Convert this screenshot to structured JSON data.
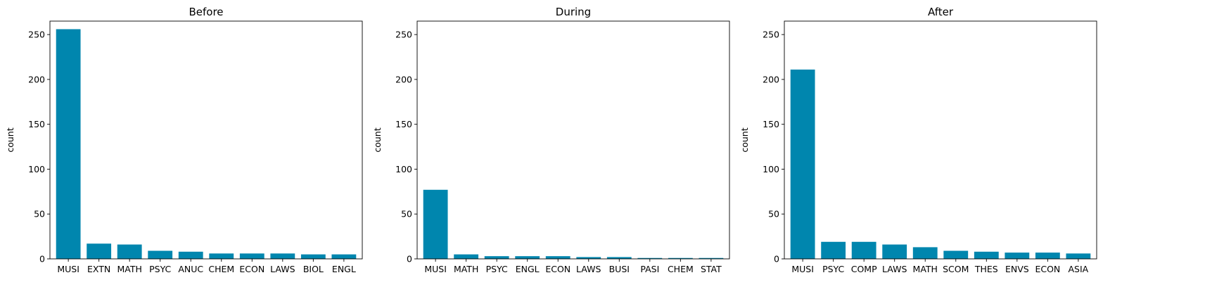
{
  "chart_data": [
    {
      "type": "bar",
      "title": "Before",
      "xlabel": "",
      "ylabel": "count",
      "ylim": [
        0,
        265
      ],
      "yticks": [
        0,
        50,
        100,
        150,
        200,
        250
      ],
      "color": "#0086ae",
      "categories": [
        "MUSI",
        "EXTN",
        "MATH",
        "PSYC",
        "ANUC",
        "CHEM",
        "ECON",
        "LAWS",
        "BIOL",
        "ENGL"
      ],
      "values": [
        256,
        17,
        16,
        9,
        8,
        6,
        6,
        6,
        5,
        5
      ]
    },
    {
      "type": "bar",
      "title": "During",
      "xlabel": "",
      "ylabel": "count",
      "ylim": [
        0,
        265
      ],
      "yticks": [
        0,
        50,
        100,
        150,
        200,
        250
      ],
      "color": "#0086ae",
      "categories": [
        "MUSI",
        "MATH",
        "PSYC",
        "ENGL",
        "ECON",
        "LAWS",
        "BUSI",
        "PASI",
        "CHEM",
        "STAT"
      ],
      "values": [
        77,
        5,
        3,
        3,
        3,
        2,
        2,
        1,
        1,
        1
      ]
    },
    {
      "type": "bar",
      "title": "After",
      "xlabel": "",
      "ylabel": "count",
      "ylim": [
        0,
        265
      ],
      "yticks": [
        0,
        50,
        100,
        150,
        200,
        250
      ],
      "color": "#0086ae",
      "categories": [
        "MUSI",
        "PSYC",
        "COMP",
        "LAWS",
        "MATH",
        "SCOM",
        "THES",
        "ENVS",
        "ECON",
        "ASIA"
      ],
      "values": [
        211,
        19,
        19,
        16,
        13,
        9,
        8,
        7,
        7,
        6
      ]
    }
  ]
}
